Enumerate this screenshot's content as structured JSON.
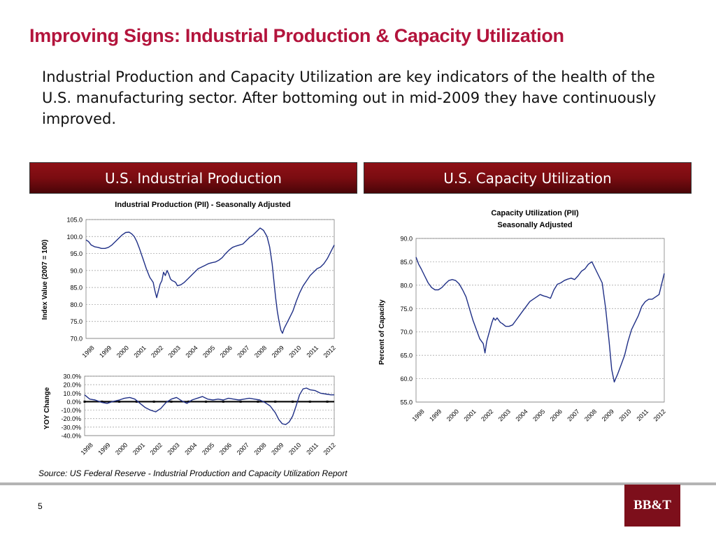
{
  "slide": {
    "title": "Improving Signs: Industrial Production & Capacity Utilization",
    "intro": "Industrial Production and Capacity Utilization are key indicators of the health of the U.S. manufacturing sector.  After bottoming out in mid-2009 they have continuously improved.",
    "banner_left": "U.S. Industrial Production",
    "banner_right": "U.S. Capacity Utilization",
    "source": "Source: US Federal Reserve - Industrial Production and Capacity Utilization Report",
    "page_number": "5",
    "logo_text": "BB&T",
    "accent_color": "#b3143c",
    "banner_color": "#7a0c11",
    "line_color": "#1f2f86"
  },
  "chart_data": [
    {
      "id": "ip",
      "type": "line",
      "title": "Industrial Production (PII) - Seasonally Adjusted",
      "xlabel": "",
      "ylabel": "Index Value (2007 = 100)",
      "ylim": [
        70,
        105
      ],
      "yticks": [
        "70.0",
        "75.0",
        "80.0",
        "85.0",
        "90.0",
        "95.0",
        "100.0",
        "105.0"
      ],
      "categories": [
        "1998",
        "1999",
        "2000",
        "2001",
        "2002",
        "2003",
        "2004",
        "2005",
        "2006",
        "2007",
        "2008",
        "2009",
        "2010",
        "2011",
        "2012"
      ],
      "xlim": [
        1998,
        2012.4
      ],
      "grid": true,
      "series": [
        {
          "x": [
            1998.0,
            1998.15,
            1998.3,
            1998.5,
            1998.7,
            1998.9,
            1999.1,
            1999.3,
            1999.5,
            1999.7,
            1999.9,
            2000.1,
            2000.3,
            2000.5,
            2000.65,
            2000.8,
            2000.95,
            2001.1,
            2001.3,
            2001.5,
            2001.7,
            2001.9,
            2002.0,
            2002.1,
            2002.2,
            2002.3,
            2002.4,
            2002.5,
            2002.6,
            2002.7,
            2002.8,
            2002.9,
            2003.0,
            2003.1,
            2003.2,
            2003.3,
            2003.5,
            2003.7,
            2003.9,
            2004.1,
            2004.3,
            2004.5,
            2004.7,
            2004.9,
            2005.1,
            2005.3,
            2005.5,
            2005.7,
            2005.9,
            2006.1,
            2006.3,
            2006.5,
            2006.7,
            2006.9,
            2007.1,
            2007.3,
            2007.5,
            2007.7,
            2007.9,
            2008.1,
            2008.3,
            2008.5,
            2008.65,
            2008.8,
            2008.9,
            2009.0,
            2009.1,
            2009.2,
            2009.3,
            2009.4,
            2009.5,
            2009.6,
            2009.8,
            2010.0,
            2010.2,
            2010.4,
            2010.6,
            2010.8,
            2011.0,
            2011.2,
            2011.4,
            2011.6,
            2011.8,
            2012.0,
            2012.2,
            2012.4
          ],
          "y": [
            99,
            98.5,
            97.5,
            97,
            96.8,
            96.5,
            96.5,
            96.8,
            97.5,
            98.5,
            99.5,
            100.5,
            101.2,
            101.3,
            100.8,
            100,
            98.5,
            96.5,
            93.5,
            90.5,
            88,
            86.5,
            84,
            82,
            84,
            86,
            87,
            89.5,
            88.5,
            90,
            89,
            87.5,
            87,
            86.8,
            86.5,
            85.5,
            85.8,
            86.5,
            87.5,
            88.5,
            89.5,
            90.5,
            91,
            91.5,
            92,
            92.3,
            92.5,
            93,
            93.8,
            95,
            96,
            96.8,
            97.2,
            97.5,
            97.8,
            98.8,
            99.8,
            100.5,
            101.5,
            102.5,
            101.8,
            100,
            97,
            92,
            87,
            82,
            78,
            75,
            72.5,
            71.5,
            73,
            74,
            76,
            78,
            81,
            83.5,
            85.5,
            87,
            88.5,
            89.5,
            90.5,
            91,
            92,
            93.5,
            95.5,
            97.5
          ]
        }
      ]
    },
    {
      "id": "yoy",
      "type": "line",
      "title": "",
      "xlabel": "",
      "ylabel": "YOY Change",
      "ylim": [
        -40,
        30
      ],
      "yticks": [
        "-40.0%",
        "-30.0%",
        "-20.0%",
        "-10.0%",
        "0.0%",
        "10.0%",
        "20.0%",
        "30.0%"
      ],
      "categories": [
        "1998",
        "1999",
        "2000",
        "2001",
        "2002",
        "2003",
        "2004",
        "2005",
        "2006",
        "2007",
        "2008",
        "2009",
        "2010",
        "2011",
        "2012"
      ],
      "xlim": [
        1998,
        2012.4
      ],
      "grid": true,
      "series": [
        {
          "x": [
            1998.0,
            1998.3,
            1998.6,
            1999.0,
            1999.3,
            1999.6,
            2000.0,
            2000.3,
            2000.6,
            2000.9,
            2001.2,
            2001.5,
            2001.8,
            2002.1,
            2002.4,
            2002.7,
            2003.0,
            2003.3,
            2003.6,
            2003.9,
            2004.2,
            2004.5,
            2004.8,
            2005.1,
            2005.4,
            2005.7,
            2006.0,
            2006.3,
            2006.6,
            2006.9,
            2007.2,
            2007.5,
            2007.8,
            2008.1,
            2008.4,
            2008.7,
            2009.0,
            2009.2,
            2009.4,
            2009.6,
            2009.8,
            2010.0,
            2010.2,
            2010.4,
            2010.6,
            2010.8,
            2011.0,
            2011.3,
            2011.6,
            2011.9,
            2012.2,
            2012.4
          ],
          "y": [
            8,
            3,
            2,
            -1,
            -2,
            0,
            2,
            4,
            5,
            3,
            -2,
            -7,
            -10,
            -12,
            -8,
            -1,
            3,
            5,
            1,
            -2,
            2,
            4,
            6,
            3,
            2,
            3,
            2,
            4,
            3,
            2,
            3,
            4,
            3,
            2,
            -1,
            -5,
            -13,
            -21,
            -26,
            -27,
            -24,
            -17,
            -5,
            8,
            15,
            16,
            14,
            13,
            10,
            9,
            8,
            8
          ]
        }
      ]
    },
    {
      "id": "cu",
      "type": "line",
      "title": "Capacity Utilization (PII)",
      "subtitle": "Seasonally Adjusted",
      "xlabel": "",
      "ylabel": "Percent of Capacity",
      "ylim": [
        55,
        90
      ],
      "yticks": [
        "55.0",
        "60.0",
        "65.0",
        "70.0",
        "75.0",
        "80.0",
        "85.0",
        "90.0"
      ],
      "categories": [
        "1998",
        "1999",
        "2000",
        "2001",
        "2002",
        "2003",
        "2004",
        "2005",
        "2006",
        "2007",
        "2008",
        "2009",
        "2010",
        "2011",
        "2012"
      ],
      "xlim": [
        1998,
        2012.4
      ],
      "grid": true,
      "series": [
        {
          "x": [
            1998.0,
            1998.15,
            1998.3,
            1998.5,
            1998.7,
            1998.9,
            1999.1,
            1999.3,
            1999.5,
            1999.7,
            1999.9,
            2000.1,
            2000.3,
            2000.5,
            2000.7,
            2000.9,
            2001.1,
            2001.3,
            2001.5,
            2001.7,
            2001.9,
            2002.0,
            2002.1,
            2002.25,
            2002.4,
            2002.5,
            2002.6,
            2002.7,
            2002.8,
            2002.9,
            2003.0,
            2003.1,
            2003.2,
            2003.4,
            2003.6,
            2003.8,
            2004.0,
            2004.2,
            2004.4,
            2004.6,
            2004.8,
            2005.0,
            2005.2,
            2005.4,
            2005.6,
            2005.8,
            2006.0,
            2006.2,
            2006.4,
            2006.6,
            2006.8,
            2007.0,
            2007.2,
            2007.4,
            2007.6,
            2007.8,
            2008.0,
            2008.2,
            2008.4,
            2008.6,
            2008.8,
            2009.0,
            2009.2,
            2009.35,
            2009.5,
            2009.7,
            2009.9,
            2010.1,
            2010.3,
            2010.5,
            2010.7,
            2010.9,
            2011.1,
            2011.3,
            2011.5,
            2011.7,
            2011.9,
            2012.1,
            2012.4
          ],
          "y": [
            86,
            84.5,
            83.5,
            82,
            80.5,
            79.5,
            79,
            79,
            79.5,
            80.3,
            81,
            81.2,
            81,
            80.3,
            79,
            77.5,
            75,
            72.5,
            70.5,
            68.5,
            67.5,
            65.5,
            68,
            70,
            72,
            73,
            72.5,
            73,
            72.5,
            72,
            71.8,
            71.5,
            71.2,
            71.2,
            71.5,
            72.5,
            73.5,
            74.5,
            75.5,
            76.5,
            77,
            77.5,
            78,
            77.7,
            77.5,
            77.2,
            79,
            80.2,
            80.5,
            81,
            81.3,
            81.5,
            81.2,
            82,
            83,
            83.5,
            84.5,
            85,
            83.5,
            82,
            80.5,
            75,
            68,
            62,
            59.3,
            61,
            63,
            65,
            68,
            70.5,
            72,
            73.5,
            75.5,
            76.5,
            77,
            77,
            77.5,
            78,
            82.5
          ]
        }
      ]
    }
  ]
}
